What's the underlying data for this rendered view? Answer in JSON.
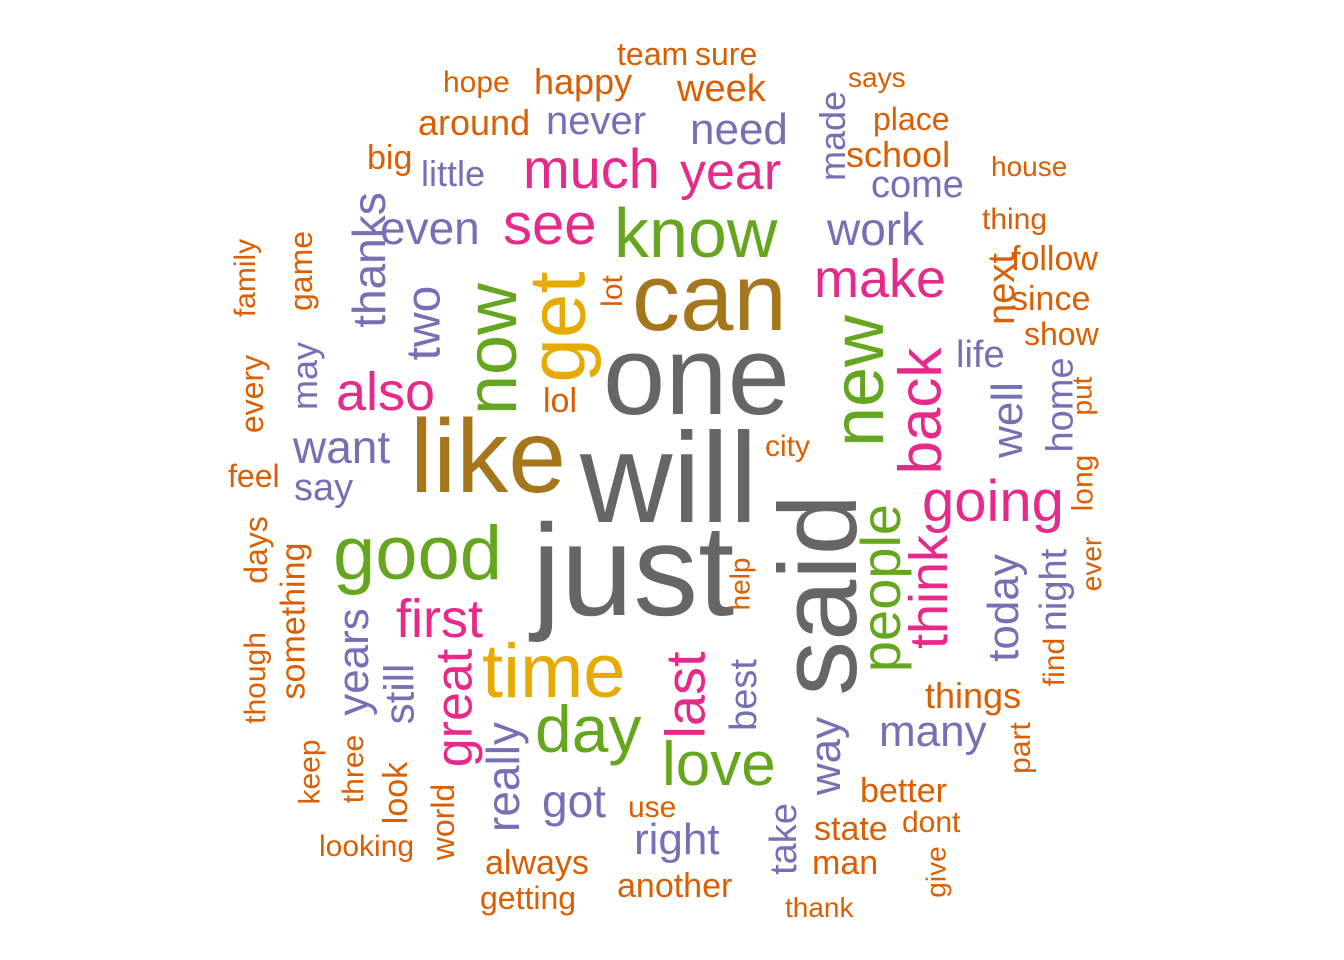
{
  "palette": {
    "gray": "#666666",
    "brown": "#A6761D",
    "gold": "#E6AB02",
    "green": "#66A61E",
    "pink": "#E7298A",
    "purple": "#7570B3",
    "orange": "#D95F02"
  },
  "words": [
    {
      "text": "will",
      "color": "gray"
    },
    {
      "text": "one",
      "color": "gray"
    },
    {
      "text": "just",
      "color": "gray"
    },
    {
      "text": "said",
      "color": "gray"
    },
    {
      "text": "like",
      "color": "brown"
    },
    {
      "text": "can",
      "color": "brown"
    },
    {
      "text": "get",
      "color": "gold"
    },
    {
      "text": "time",
      "color": "gold"
    },
    {
      "text": "know",
      "color": "green"
    },
    {
      "text": "now",
      "color": "green"
    },
    {
      "text": "new",
      "color": "green"
    },
    {
      "text": "good",
      "color": "green"
    },
    {
      "text": "day",
      "color": "green"
    },
    {
      "text": "love",
      "color": "green"
    },
    {
      "text": "people",
      "color": "green"
    },
    {
      "text": "much",
      "color": "pink"
    },
    {
      "text": "year",
      "color": "pink"
    },
    {
      "text": "see",
      "color": "pink"
    },
    {
      "text": "make",
      "color": "pink"
    },
    {
      "text": "also",
      "color": "pink"
    },
    {
      "text": "back",
      "color": "pink"
    },
    {
      "text": "going",
      "color": "pink"
    },
    {
      "text": "first",
      "color": "pink"
    },
    {
      "text": "think",
      "color": "pink"
    },
    {
      "text": "great",
      "color": "pink"
    },
    {
      "text": "last",
      "color": "pink"
    },
    {
      "text": "never",
      "color": "purple"
    },
    {
      "text": "need",
      "color": "purple"
    },
    {
      "text": "little",
      "color": "purple"
    },
    {
      "text": "come",
      "color": "purple"
    },
    {
      "text": "even",
      "color": "purple"
    },
    {
      "text": "work",
      "color": "purple"
    },
    {
      "text": "thanks",
      "color": "purple"
    },
    {
      "text": "two",
      "color": "purple"
    },
    {
      "text": "want",
      "color": "purple"
    },
    {
      "text": "say",
      "color": "purple"
    },
    {
      "text": "life",
      "color": "purple"
    },
    {
      "text": "well",
      "color": "purple"
    },
    {
      "text": "home",
      "color": "purple"
    },
    {
      "text": "today",
      "color": "purple"
    },
    {
      "text": "night",
      "color": "purple"
    },
    {
      "text": "years",
      "color": "purple"
    },
    {
      "text": "still",
      "color": "purple"
    },
    {
      "text": "really",
      "color": "purple"
    },
    {
      "text": "got",
      "color": "purple"
    },
    {
      "text": "right",
      "color": "purple"
    },
    {
      "text": "best",
      "color": "purple"
    },
    {
      "text": "way",
      "color": "purple"
    },
    {
      "text": "many",
      "color": "purple"
    },
    {
      "text": "take",
      "color": "purple"
    },
    {
      "text": "made",
      "color": "purple"
    },
    {
      "text": "may",
      "color": "purple"
    },
    {
      "text": "team",
      "color": "orange"
    },
    {
      "text": "sure",
      "color": "orange"
    },
    {
      "text": "hope",
      "color": "orange"
    },
    {
      "text": "happy",
      "color": "orange"
    },
    {
      "text": "week",
      "color": "orange"
    },
    {
      "text": "says",
      "color": "orange"
    },
    {
      "text": "around",
      "color": "orange"
    },
    {
      "text": "place",
      "color": "orange"
    },
    {
      "text": "big",
      "color": "orange"
    },
    {
      "text": "school",
      "color": "orange"
    },
    {
      "text": "house",
      "color": "orange"
    },
    {
      "text": "thing",
      "color": "orange"
    },
    {
      "text": "follow",
      "color": "orange"
    },
    {
      "text": "since",
      "color": "orange"
    },
    {
      "text": "show",
      "color": "orange"
    },
    {
      "text": "next",
      "color": "orange"
    },
    {
      "text": "family",
      "color": "orange"
    },
    {
      "text": "game",
      "color": "orange"
    },
    {
      "text": "lot",
      "color": "orange"
    },
    {
      "text": "lol",
      "color": "orange"
    },
    {
      "text": "every",
      "color": "orange"
    },
    {
      "text": "city",
      "color": "orange"
    },
    {
      "text": "put",
      "color": "orange"
    },
    {
      "text": "feel",
      "color": "orange"
    },
    {
      "text": "long",
      "color": "orange"
    },
    {
      "text": "days",
      "color": "orange"
    },
    {
      "text": "ever",
      "color": "orange"
    },
    {
      "text": "something",
      "color": "orange"
    },
    {
      "text": "help",
      "color": "orange"
    },
    {
      "text": "find",
      "color": "orange"
    },
    {
      "text": "though",
      "color": "orange"
    },
    {
      "text": "things",
      "color": "orange"
    },
    {
      "text": "part",
      "color": "orange"
    },
    {
      "text": "keep",
      "color": "orange"
    },
    {
      "text": "three",
      "color": "orange"
    },
    {
      "text": "better",
      "color": "orange"
    },
    {
      "text": "use",
      "color": "orange"
    },
    {
      "text": "look",
      "color": "orange"
    },
    {
      "text": "world",
      "color": "orange"
    },
    {
      "text": "state",
      "color": "orange"
    },
    {
      "text": "dont",
      "color": "orange"
    },
    {
      "text": "looking",
      "color": "orange"
    },
    {
      "text": "always",
      "color": "orange"
    },
    {
      "text": "man",
      "color": "orange"
    },
    {
      "text": "give",
      "color": "orange"
    },
    {
      "text": "another",
      "color": "orange"
    },
    {
      "text": "getting",
      "color": "orange"
    },
    {
      "text": "thank",
      "color": "orange"
    }
  ]
}
